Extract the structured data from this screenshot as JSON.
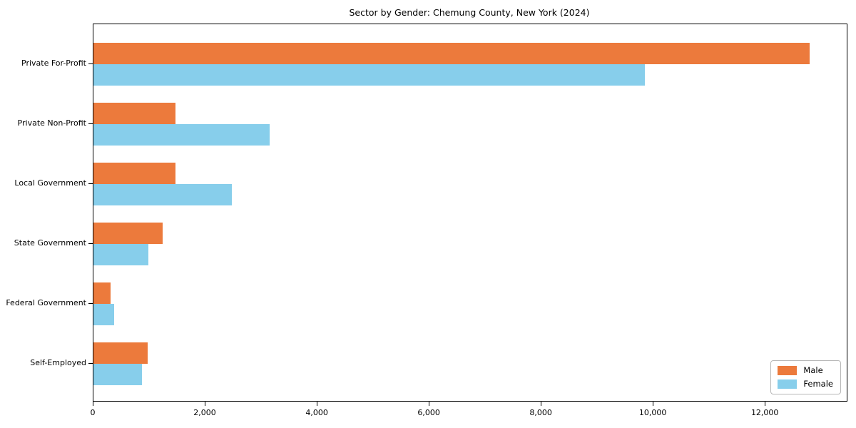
{
  "colors": {
    "male": "#EC7A3C",
    "female": "#87CEEB",
    "axis": "#000000",
    "background": "#ffffff",
    "legend_border": "#b7b7b7"
  },
  "chart_data": {
    "type": "bar",
    "orientation": "horizontal",
    "title": "Sector by Gender: Chemung County, New York (2024)",
    "xlabel": "",
    "ylabel": "",
    "grid": false,
    "categories": [
      "Private For-Profit",
      "Private Non-Profit",
      "Local Government",
      "State Government",
      "Federal Government",
      "Self-Employed"
    ],
    "series": [
      {
        "name": "Male",
        "color": "#EC7A3C",
        "values": [
          12790,
          1460,
          1470,
          1240,
          300,
          965
        ]
      },
      {
        "name": "Female",
        "color": "#87CEEB",
        "values": [
          9850,
          3140,
          2470,
          975,
          365,
          860
        ]
      }
    ],
    "xlim": [
      0,
      13450
    ],
    "x_ticks": [
      0,
      2000,
      4000,
      6000,
      8000,
      10000,
      12000
    ],
    "x_tick_labels": [
      "0",
      "2,000",
      "4,000",
      "6,000",
      "8,000",
      "10,000",
      "12,000"
    ],
    "legend": {
      "position": "lower right",
      "entries": [
        "Male",
        "Female"
      ]
    }
  }
}
